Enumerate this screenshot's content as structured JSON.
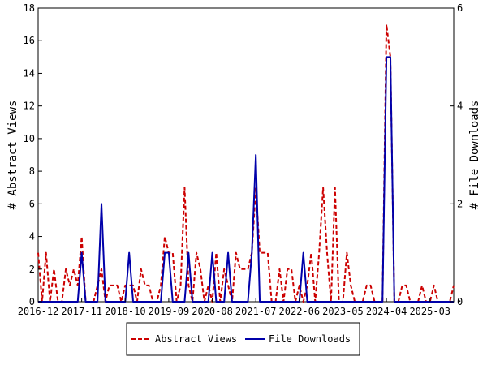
{
  "chart_data": {
    "type": "line",
    "x_ticks": [
      "2016-12",
      "2017-11",
      "2018-10",
      "2019-09",
      "2020-08",
      "2021-07",
      "2022-06",
      "2023-05",
      "2024-04",
      "2025-03"
    ],
    "x_tick_index": [
      0,
      11,
      22,
      33,
      44,
      55,
      66,
      77,
      88,
      99
    ],
    "ylabel_left": "# Abstract Views",
    "ylabel_right": "# File Downloads",
    "ylim_left": [
      0,
      18
    ],
    "yticks_left": [
      "0",
      "2",
      "4",
      "6",
      "8",
      "10",
      "12",
      "14",
      "16",
      "18"
    ],
    "ylim_right": [
      0,
      6
    ],
    "yticks_right": [
      "0",
      "2",
      "4",
      "6"
    ],
    "grid": false,
    "legend_position": "bottom",
    "series": [
      {
        "name": "Abstract Views",
        "axis": "left",
        "color": "#cc0000",
        "style": "dashed",
        "values": [
          3,
          0,
          3,
          0,
          2,
          0,
          0,
          2,
          1,
          2,
          1,
          4,
          0,
          0,
          0,
          1,
          2,
          0,
          1,
          1,
          1,
          0,
          1,
          1,
          1,
          0,
          2,
          1,
          1,
          0,
          0,
          1,
          4,
          3,
          3,
          0,
          1,
          7,
          1,
          0,
          3,
          2,
          0,
          1,
          0,
          3,
          0,
          2,
          1,
          0,
          3,
          2,
          2,
          2,
          3,
          7,
          3,
          3,
          3,
          0,
          0,
          2,
          0,
          2,
          2,
          0,
          1,
          0,
          1,
          3,
          0,
          3,
          7,
          3,
          0,
          7,
          0,
          0,
          3,
          1,
          0,
          0,
          0,
          1,
          1,
          0,
          0,
          0,
          17,
          15,
          0,
          0,
          1,
          1,
          0,
          0,
          0,
          1,
          0,
          0,
          1,
          0,
          0,
          0,
          0,
          1
        ]
      },
      {
        "name": "File Downloads",
        "axis": "right",
        "color": "#0000aa",
        "style": "solid",
        "values": [
          0,
          0,
          0,
          0,
          0,
          0,
          0,
          0,
          0,
          0,
          0,
          1,
          0,
          0,
          0,
          0,
          2,
          0,
          0,
          0,
          0,
          0,
          0,
          1,
          0,
          0,
          0,
          0,
          0,
          0,
          0,
          0,
          1,
          1,
          0,
          0,
          0,
          0,
          1,
          0,
          0,
          0,
          0,
          0,
          1,
          0,
          0,
          0,
          1,
          0,
          0,
          0,
          0,
          0,
          1,
          3,
          0,
          0,
          0,
          0,
          0,
          0,
          0,
          0,
          0,
          0,
          0,
          1,
          0,
          0,
          0,
          0,
          0,
          0,
          0,
          0,
          0,
          0,
          0,
          0,
          0,
          0,
          0,
          0,
          0,
          0,
          0,
          0,
          5,
          5,
          0,
          0,
          0,
          0,
          0,
          0,
          0,
          0,
          0,
          0,
          0,
          0,
          0,
          0,
          0,
          0
        ]
      }
    ]
  }
}
